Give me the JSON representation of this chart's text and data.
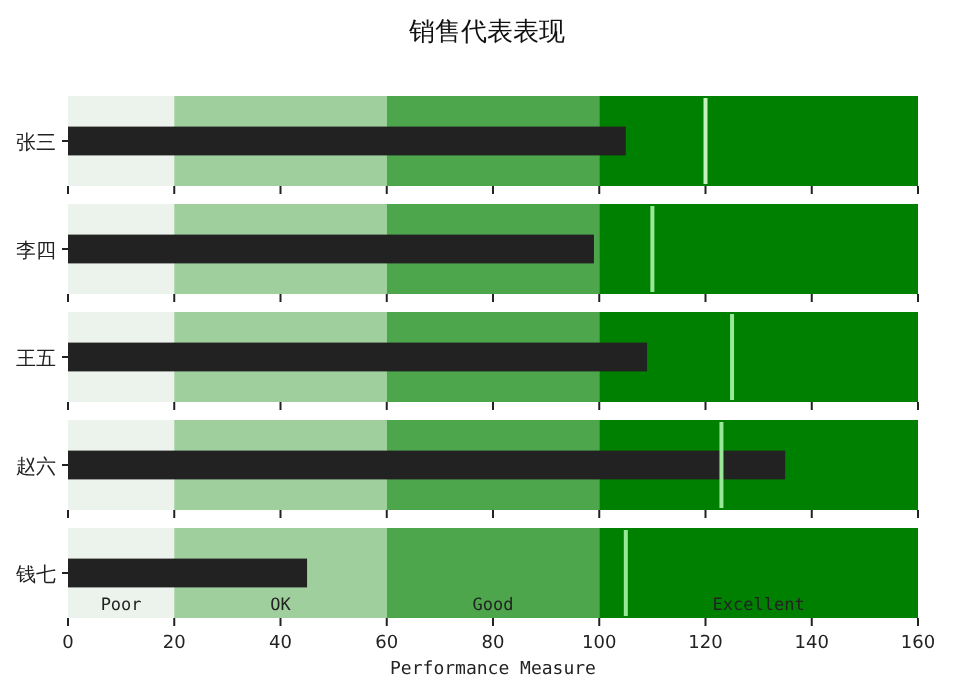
{
  "chart_data": [
    {
      "type": "bar",
      "orientation": "horizontal",
      "title": "销售代表表现",
      "categories": [
        "张三"
      ],
      "series": [
        {
          "color": "#222222",
          "values": [
            105
          ]
        }
      ],
      "xlim": [
        0,
        160
      ],
      "xticks": [
        {
          "value": 0,
          "label": null
        },
        {
          "value": 20,
          "label": null
        },
        {
          "value": 40,
          "label": null
        },
        {
          "value": 60,
          "label": null
        },
        {
          "value": 80,
          "label": null
        },
        {
          "value": 100,
          "label": null
        },
        {
          "value": 120,
          "label": null
        },
        {
          "value": 140,
          "label": null
        },
        {
          "value": 160,
          "label": null
        }
      ],
      "tick_labels": "y",
      "bands": [
        {
          "axis": "x",
          "from": 0,
          "to": 20,
          "color": "#ebf3ec"
        },
        {
          "axis": "x",
          "from": 20,
          "to": 60,
          "color": "#9fcf9d"
        },
        {
          "axis": "x",
          "from": 60,
          "to": 100,
          "color": "#4ea64c"
        },
        {
          "axis": "x",
          "from": 100,
          "to": 160,
          "color": "#008000"
        }
      ],
      "ref_lines": [
        {
          "axis": "x",
          "value": 120,
          "color": "#c8f0c0"
        }
      ]
    },
    {
      "type": "bar",
      "orientation": "horizontal",
      "categories": [
        "李四"
      ],
      "series": [
        {
          "color": "#222222",
          "values": [
            99
          ]
        }
      ],
      "xlim": [
        0,
        160
      ],
      "xticks": [
        {
          "value": 0,
          "label": null
        },
        {
          "value": 20,
          "label": null
        },
        {
          "value": 40,
          "label": null
        },
        {
          "value": 60,
          "label": null
        },
        {
          "value": 80,
          "label": null
        },
        {
          "value": 100,
          "label": null
        },
        {
          "value": 120,
          "label": null
        },
        {
          "value": 140,
          "label": null
        },
        {
          "value": 160,
          "label": null
        }
      ],
      "tick_labels": "y",
      "bands": [
        {
          "axis": "x",
          "from": 0,
          "to": 20,
          "color": "#ebf3ec"
        },
        {
          "axis": "x",
          "from": 20,
          "to": 60,
          "color": "#9fcf9d"
        },
        {
          "axis": "x",
          "from": 60,
          "to": 100,
          "color": "#4ea64c"
        },
        {
          "axis": "x",
          "from": 100,
          "to": 160,
          "color": "#008000"
        }
      ],
      "ref_lines": [
        {
          "axis": "x",
          "value": 110,
          "color": "#98e898"
        }
      ]
    },
    {
      "type": "bar",
      "orientation": "horizontal",
      "categories": [
        "王五"
      ],
      "series": [
        {
          "color": "#222222",
          "values": [
            109
          ]
        }
      ],
      "xlim": [
        0,
        160
      ],
      "xticks": [
        {
          "value": 0,
          "label": null
        },
        {
          "value": 20,
          "label": null
        },
        {
          "value": 40,
          "label": null
        },
        {
          "value": 60,
          "label": null
        },
        {
          "value": 80,
          "label": null
        },
        {
          "value": 100,
          "label": null
        },
        {
          "value": 120,
          "label": null
        },
        {
          "value": 140,
          "label": null
        },
        {
          "value": 160,
          "label": null
        }
      ],
      "tick_labels": "y",
      "bands": [
        {
          "axis": "x",
          "from": 0,
          "to": 20,
          "color": "#ebf3ec"
        },
        {
          "axis": "x",
          "from": 20,
          "to": 60,
          "color": "#9fcf9d"
        },
        {
          "axis": "x",
          "from": 60,
          "to": 100,
          "color": "#4ea64c"
        },
        {
          "axis": "x",
          "from": 100,
          "to": 160,
          "color": "#008000"
        }
      ],
      "ref_lines": [
        {
          "axis": "x",
          "value": 125,
          "color": "#98e898"
        }
      ]
    },
    {
      "type": "bar",
      "orientation": "horizontal",
      "categories": [
        "赵六"
      ],
      "series": [
        {
          "color": "#222222",
          "values": [
            135
          ]
        }
      ],
      "xlim": [
        0,
        160
      ],
      "xticks": [
        {
          "value": 0,
          "label": null
        },
        {
          "value": 20,
          "label": null
        },
        {
          "value": 40,
          "label": null
        },
        {
          "value": 60,
          "label": null
        },
        {
          "value": 80,
          "label": null
        },
        {
          "value": 100,
          "label": null
        },
        {
          "value": 120,
          "label": null
        },
        {
          "value": 140,
          "label": null
        },
        {
          "value": 160,
          "label": null
        }
      ],
      "tick_labels": "y",
      "bands": [
        {
          "axis": "x",
          "from": 0,
          "to": 20,
          "color": "#ebf3ec"
        },
        {
          "axis": "x",
          "from": 20,
          "to": 60,
          "color": "#9fcf9d"
        },
        {
          "axis": "x",
          "from": 60,
          "to": 100,
          "color": "#4ea64c"
        },
        {
          "axis": "x",
          "from": 100,
          "to": 160,
          "color": "#008000"
        }
      ],
      "ref_lines": [
        {
          "axis": "x",
          "value": 123,
          "color": "#98e898"
        }
      ]
    },
    {
      "type": "bar",
      "orientation": "horizontal",
      "categories": [
        "钱七"
      ],
      "series": [
        {
          "color": "#222222",
          "values": [
            45
          ]
        }
      ],
      "xlim": [
        0,
        160
      ],
      "xticks": [
        0,
        20,
        40,
        60,
        80,
        100,
        120,
        140,
        160
      ],
      "xlabel": "Performance Measure",
      "bands": [
        {
          "axis": "x",
          "from": 0,
          "to": 20,
          "color": "#ebf3ec",
          "label": "Poor"
        },
        {
          "axis": "x",
          "from": 20,
          "to": 60,
          "color": "#9fcf9d",
          "label": "OK"
        },
        {
          "axis": "x",
          "from": 60,
          "to": 100,
          "color": "#4ea64c",
          "label": "Good"
        },
        {
          "axis": "x",
          "from": 100,
          "to": 160,
          "color": "#008000",
          "label": "Excellent"
        }
      ],
      "ref_lines": [
        {
          "axis": "x",
          "value": 105,
          "color": "#98e898"
        }
      ]
    }
  ]
}
